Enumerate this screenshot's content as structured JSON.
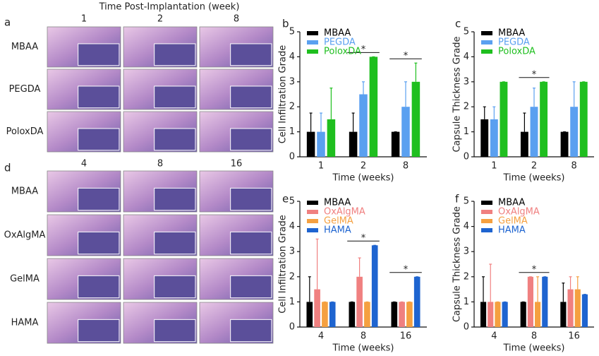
{
  "figure": {
    "title": "Time Post-Implantation (week)",
    "panel_labels": [
      "a",
      "b",
      "c",
      "d",
      "e",
      "f"
    ],
    "top_columns": [
      "1",
      "2",
      "8"
    ],
    "top_rows": [
      "MBAA",
      "PEGDA",
      "PoloxDA"
    ],
    "bottom_columns": [
      "4",
      "8",
      "16"
    ],
    "bottom_rows": [
      "MBAA",
      "OxAlgMA",
      "GelMA",
      "HAMA"
    ]
  },
  "chart_data": [
    {
      "type": "bar",
      "ylabel": "Cell Infiltration Grade",
      "xlabel": "Time (weeks)",
      "categories": [
        "1",
        "2",
        "8"
      ],
      "ylim": [
        0,
        5
      ],
      "yticks": [
        0,
        1,
        2,
        3,
        4,
        5
      ],
      "series": [
        {
          "name": "MBAA",
          "color": "#000000",
          "values": [
            1,
            1,
            1
          ],
          "errors": [
            0.75,
            0.75,
            0
          ]
        },
        {
          "name": "PEGDA",
          "color": "#5aa0f0",
          "values": [
            1,
            2.5,
            2
          ],
          "errors": [
            0.75,
            0.5,
            1
          ]
        },
        {
          "name": "PoloxDA",
          "color": "#1fbf1f",
          "values": [
            1.5,
            4,
            3
          ],
          "errors": [
            1.25,
            0,
            0.75
          ]
        }
      ],
      "annotations": [
        {
          "category": "2",
          "text": "*"
        },
        {
          "category": "8",
          "text": "*"
        }
      ]
    },
    {
      "type": "bar",
      "ylabel": "Capsule Thickness Grade",
      "xlabel": "Time (weeks)",
      "categories": [
        "1",
        "2",
        "8"
      ],
      "ylim": [
        0,
        5
      ],
      "yticks": [
        0,
        1,
        2,
        3,
        4,
        5
      ],
      "series": [
        {
          "name": "MBAA",
          "color": "#000000",
          "values": [
            1.5,
            1,
            1
          ],
          "errors": [
            0.5,
            0.75,
            0
          ]
        },
        {
          "name": "PEGDA",
          "color": "#5aa0f0",
          "values": [
            1.5,
            2,
            2
          ],
          "errors": [
            0.5,
            0.75,
            1
          ]
        },
        {
          "name": "PoloxDA",
          "color": "#1fbf1f",
          "values": [
            3,
            3,
            3
          ],
          "errors": [
            0,
            0,
            0
          ]
        }
      ],
      "annotations": [
        {
          "category": "2",
          "text": "*"
        }
      ]
    },
    {
      "type": "bar",
      "ylabel": "Cell Infiltration Grade",
      "xlabel": "Time (weeks)",
      "categories": [
        "4",
        "8",
        "16"
      ],
      "ylim": [
        0,
        5
      ],
      "yticks": [
        0,
        1,
        2,
        3,
        4,
        5
      ],
      "series": [
        {
          "name": "MBAA",
          "color": "#000000",
          "values": [
            1,
            1,
            1
          ],
          "errors": [
            1,
            0,
            0
          ]
        },
        {
          "name": "OxAlgMA",
          "color": "#f08080",
          "values": [
            1.5,
            2,
            1
          ],
          "errors": [
            2,
            0.75,
            0
          ]
        },
        {
          "name": "GelMA",
          "color": "#f5a040",
          "values": [
            1,
            1,
            1
          ],
          "errors": [
            0,
            0,
            0
          ]
        },
        {
          "name": "HAMA",
          "color": "#1e64d0",
          "values": [
            1,
            3.25,
            2
          ],
          "errors": [
            0,
            0,
            0
          ]
        }
      ],
      "annotations": [
        {
          "category": "8",
          "text": "*"
        },
        {
          "category": "16",
          "text": "*"
        }
      ]
    },
    {
      "type": "bar",
      "ylabel": "Capsule Thickness Grade",
      "xlabel": "Time (weeks)",
      "categories": [
        "4",
        "8",
        "16"
      ],
      "ylim": [
        0,
        5
      ],
      "yticks": [
        0,
        1,
        2,
        3,
        4,
        5
      ],
      "series": [
        {
          "name": "MBAA",
          "color": "#000000",
          "values": [
            1,
            1,
            1
          ],
          "errors": [
            1,
            0,
            0.75
          ]
        },
        {
          "name": "OxAlgMA",
          "color": "#f08080",
          "values": [
            1,
            2,
            1.5
          ],
          "errors": [
            1.5,
            0,
            0.5
          ]
        },
        {
          "name": "GelMA",
          "color": "#f5a040",
          "values": [
            1,
            1,
            1.5
          ],
          "errors": [
            0,
            1,
            0.5
          ]
        },
        {
          "name": "HAMA",
          "color": "#1e64d0",
          "values": [
            1,
            2,
            1.3
          ],
          "errors": [
            0,
            0,
            0
          ]
        }
      ],
      "annotations": [
        {
          "category": "8",
          "text": "*"
        }
      ]
    }
  ]
}
